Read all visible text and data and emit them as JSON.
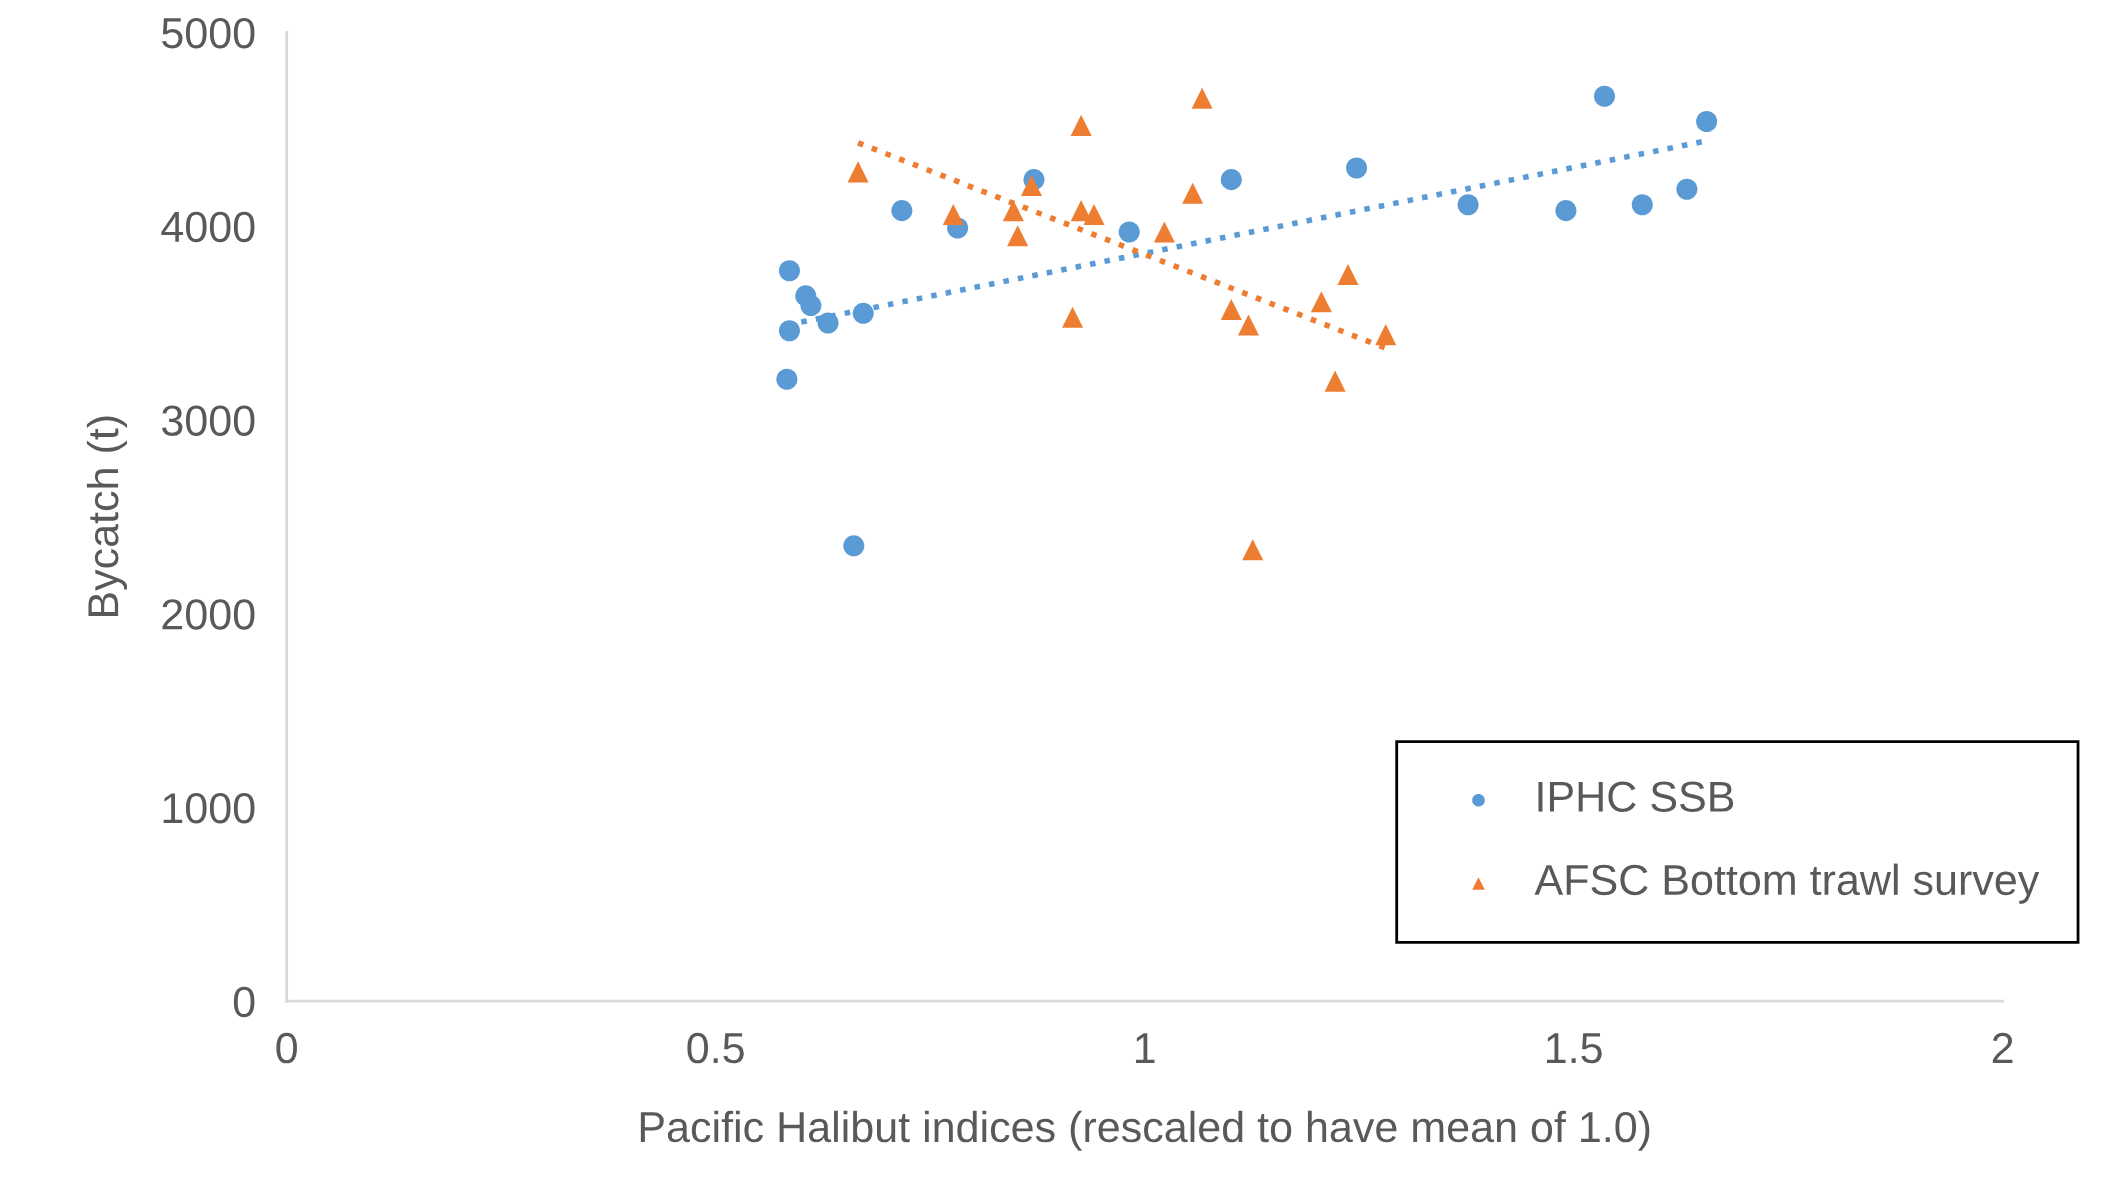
{
  "chart_data": {
    "type": "scatter",
    "xlabel": "Pacific Halibut indices (rescaled to have mean of 1.0)",
    "ylabel": "Bycatch (t)",
    "xlim": [
      0,
      2
    ],
    "xticks": [
      0,
      0.5,
      1,
      1.5,
      2
    ],
    "ylim": [
      0,
      5000
    ],
    "yticks": [
      0,
      1000,
      2000,
      3000,
      4000,
      5000
    ],
    "grid": false,
    "legend": "bottom right",
    "series": [
      {
        "name": "IPHC SSB",
        "marker": "circle",
        "color": "#5b9bd5",
        "x": [
          0.583,
          0.586,
          0.586,
          0.605,
          0.611,
          0.631,
          0.672,
          0.661,
          0.717,
          0.782,
          0.871,
          0.982,
          1.101,
          1.247,
          1.377,
          1.491,
          1.536,
          1.58,
          1.632,
          1.655
        ],
        "values": [
          3210,
          3460,
          3770,
          3640,
          3590,
          3500,
          3550,
          2350,
          4080,
          3990,
          4240,
          3970,
          4240,
          4300,
          4110,
          4080,
          4670,
          4110,
          4190,
          4540
        ]
      },
      {
        "name": "AFSC Bottom trawl survey",
        "marker": "triangle",
        "color": "#ed7d31",
        "x": [
          0.666,
          0.777,
          0.847,
          0.852,
          0.868,
          0.916,
          0.926,
          0.926,
          0.941,
          1.023,
          1.056,
          1.067,
          1.101,
          1.121,
          1.126,
          1.206,
          1.222,
          1.237,
          1.281
        ],
        "values": [
          4280,
          4060,
          4080,
          3950,
          4210,
          3530,
          4520,
          4080,
          4060,
          3970,
          4170,
          4660,
          3570,
          3490,
          2330,
          3610,
          3200,
          3750,
          3440
        ]
      },
      {
        "type": "line",
        "line_style": "dotted",
        "marker": "none",
        "color": "#5b9bd5",
        "x": [
          0.583,
          1.655
        ],
        "values": [
          3490,
          4440
        ]
      },
      {
        "type": "line",
        "line_style": "dotted",
        "marker": "none",
        "color": "#ed7d31",
        "x": [
          0.666,
          1.281
        ],
        "values": [
          4430,
          3370
        ]
      }
    ]
  }
}
